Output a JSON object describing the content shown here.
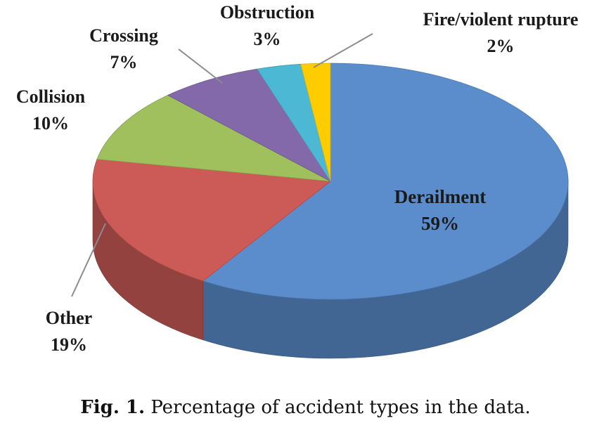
{
  "chart_data": {
    "type": "pie",
    "title": "",
    "slices": [
      {
        "label": "Derailment",
        "value": 59,
        "value_text": "59%",
        "color": "#5b8dcc"
      },
      {
        "label": "Other",
        "value": 19,
        "value_text": "19%",
        "color": "#cc5b57"
      },
      {
        "label": "Collision",
        "value": 10,
        "value_text": "10%",
        "color": "#9fc05c"
      },
      {
        "label": "Crossing",
        "value": 7,
        "value_text": "7%",
        "color": "#8369aa"
      },
      {
        "label": "Obstruction",
        "value": 3,
        "value_text": "3%",
        "color": "#4db8d3"
      },
      {
        "label": "Fire/violent rupture",
        "value": 2,
        "value_text": "2%",
        "color": "#ffcc00"
      }
    ],
    "style": "3d",
    "legend": "none"
  },
  "caption": {
    "fig_label": "Fig. 1.",
    "text": "Percentage of accident types in the data."
  }
}
